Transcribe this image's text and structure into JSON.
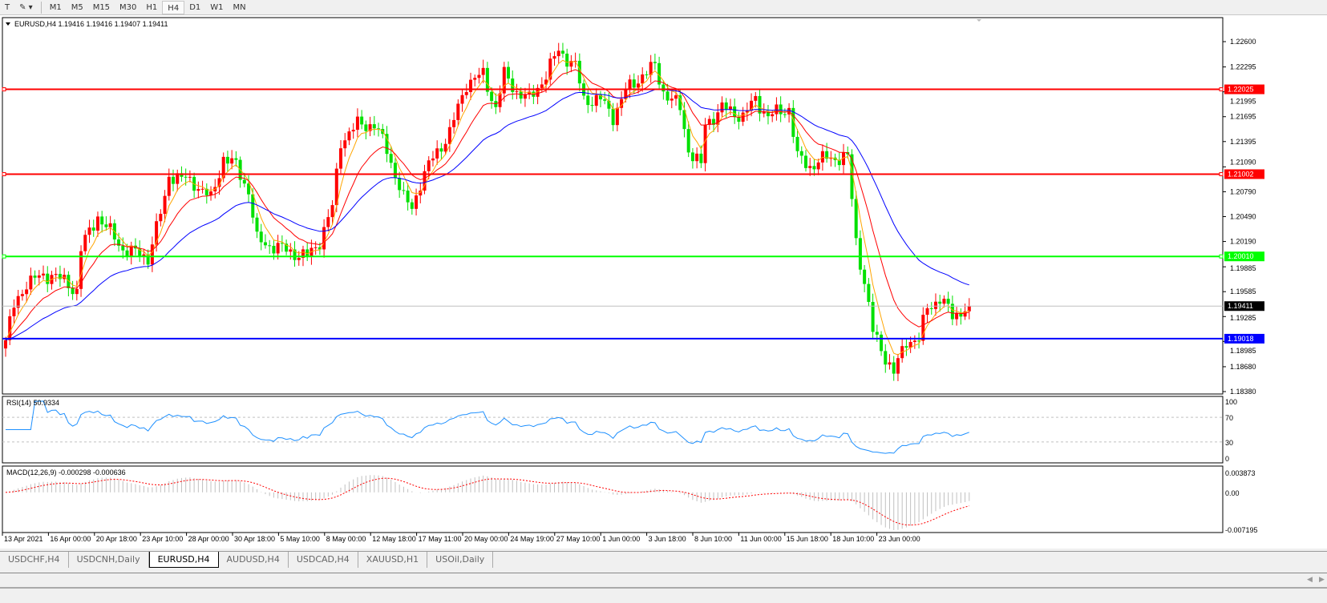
{
  "toolbar": {
    "timeframes": [
      "M1",
      "M5",
      "M15",
      "M30",
      "H1",
      "H4",
      "D1",
      "W1",
      "MN"
    ],
    "active": "H4"
  },
  "chart": {
    "header": "EURUSD,H4  1.19416 1.19416 1.19407 1.19411",
    "symbol": "EURUSD",
    "timeframe": "H4",
    "price_axis": [
      "1.22600",
      "1.22295",
      "1.21995",
      "1.21695",
      "1.21395",
      "1.21090",
      "1.20790",
      "1.20490",
      "1.20190",
      "1.19885",
      "1.19585",
      "1.19285",
      "1.18985",
      "1.18680",
      "1.18380"
    ],
    "price_range": [
      1.1838,
      1.226
    ],
    "levels": [
      {
        "price": 1.22025,
        "label": "1.22025",
        "color": "#ff0000"
      },
      {
        "price": 1.21002,
        "label": "1.21002",
        "color": "#ff0000"
      },
      {
        "price": 1.2001,
        "label": "1.20010",
        "color": "#00ff00"
      },
      {
        "price": 1.19018,
        "label": "1.19018",
        "color": "#0000ff"
      }
    ],
    "current_price": {
      "price": 1.19411,
      "label": "1.19411"
    },
    "candle_colors": {
      "bull": "#ff0000",
      "bear": "#00e000"
    },
    "ma_colors": [
      "#ffa500",
      "#ff0000",
      "#0000ff"
    ],
    "price_path": [
      [
        0,
        1.19
      ],
      [
        2,
        1.194
      ],
      [
        5,
        1.197
      ],
      [
        11,
        1.198
      ],
      [
        17,
        1.196
      ],
      [
        18,
        1.201
      ],
      [
        22,
        1.205
      ],
      [
        28,
        1.201
      ],
      [
        34,
        1.2
      ],
      [
        38,
        1.207
      ],
      [
        39,
        1.21
      ],
      [
        45,
        1.209
      ],
      [
        49,
        1.207
      ],
      [
        52,
        1.212
      ],
      [
        55,
        1.211
      ],
      [
        58,
        1.208
      ],
      [
        60,
        1.202
      ],
      [
        66,
        1.201
      ],
      [
        72,
        1.2
      ],
      [
        75,
        1.202
      ],
      [
        78,
        1.206
      ],
      [
        80,
        1.214
      ],
      [
        84,
        1.216
      ],
      [
        88,
        1.216
      ],
      [
        91,
        1.213
      ],
      [
        95,
        1.207
      ],
      [
        97,
        1.206
      ],
      [
        99,
        1.209
      ],
      [
        102,
        1.212
      ],
      [
        106,
        1.215
      ],
      [
        110,
        1.221
      ],
      [
        114,
        1.222
      ],
      [
        117,
        1.218
      ],
      [
        119,
        1.222
      ],
      [
        122,
        1.22
      ],
      [
        125,
        1.219
      ],
      [
        129,
        1.222
      ],
      [
        132,
        1.225
      ],
      [
        136,
        1.223
      ],
      [
        138,
        1.219
      ],
      [
        142,
        1.219
      ],
      [
        145,
        1.217
      ],
      [
        148,
        1.22
      ],
      [
        152,
        1.222
      ],
      [
        155,
        1.223
      ],
      [
        157,
        1.22
      ],
      [
        161,
        1.218
      ],
      [
        163,
        1.213
      ],
      [
        166,
        1.211
      ],
      [
        167,
        1.216
      ],
      [
        171,
        1.218
      ],
      [
        176,
        1.217
      ],
      [
        179,
        1.219
      ],
      [
        182,
        1.217
      ],
      [
        187,
        1.218
      ],
      [
        189,
        1.212
      ],
      [
        192,
        1.211
      ],
      [
        196,
        1.212
      ],
      [
        201,
        1.212
      ],
      [
        203,
        1.202
      ],
      [
        205,
        1.197
      ],
      [
        207,
        1.191
      ],
      [
        210,
        1.188
      ],
      [
        212,
        1.186
      ],
      [
        215,
        1.19
      ],
      [
        218,
        1.19
      ],
      [
        220,
        1.194
      ],
      [
        223,
        1.195
      ],
      [
        226,
        1.193
      ],
      [
        230,
        1.194
      ]
    ],
    "time_axis": [
      "13 Apr 2021",
      "16 Apr 00:00",
      "20 Apr 18:00",
      "23 Apr 10:00",
      "28 Apr 00:00",
      "30 Apr 18:00",
      "5 May 10:00",
      "8 May 00:00",
      "12 May 18:00",
      "17 May 11:00",
      "20 May 00:00",
      "24 May 19:00",
      "27 May 10:00",
      "1 Jun 00:00",
      "3 Jun 18:00",
      "8 Jun 10:00",
      "11 Jun 00:00",
      "15 Jun 18:00",
      "18 Jun 10:00",
      "23 Jun 00:00"
    ]
  },
  "rsi": {
    "label": "RSI(14) 50.9334",
    "axis": [
      "100",
      "70",
      "30",
      "0"
    ],
    "levels": [
      70,
      30
    ],
    "color": "#1e90ff"
  },
  "macd": {
    "label": "MACD(12,26,9) -0.000298 -0.000636",
    "axis": [
      "0.003873",
      "0.00",
      "-0.007195"
    ],
    "range": [
      -0.007195,
      0.003873
    ],
    "hist_color": "#c0c0c0",
    "signal_color": "#ff0000"
  },
  "tabs": [
    {
      "label": "USDCHF,H4"
    },
    {
      "label": "USDCNH,Daily"
    },
    {
      "label": "EURUSD,H4",
      "active": true
    },
    {
      "label": "AUDUSD,H4"
    },
    {
      "label": "USDCAD,H4"
    },
    {
      "label": "XAUUSD,H1"
    },
    {
      "label": "USOil,Daily"
    }
  ]
}
